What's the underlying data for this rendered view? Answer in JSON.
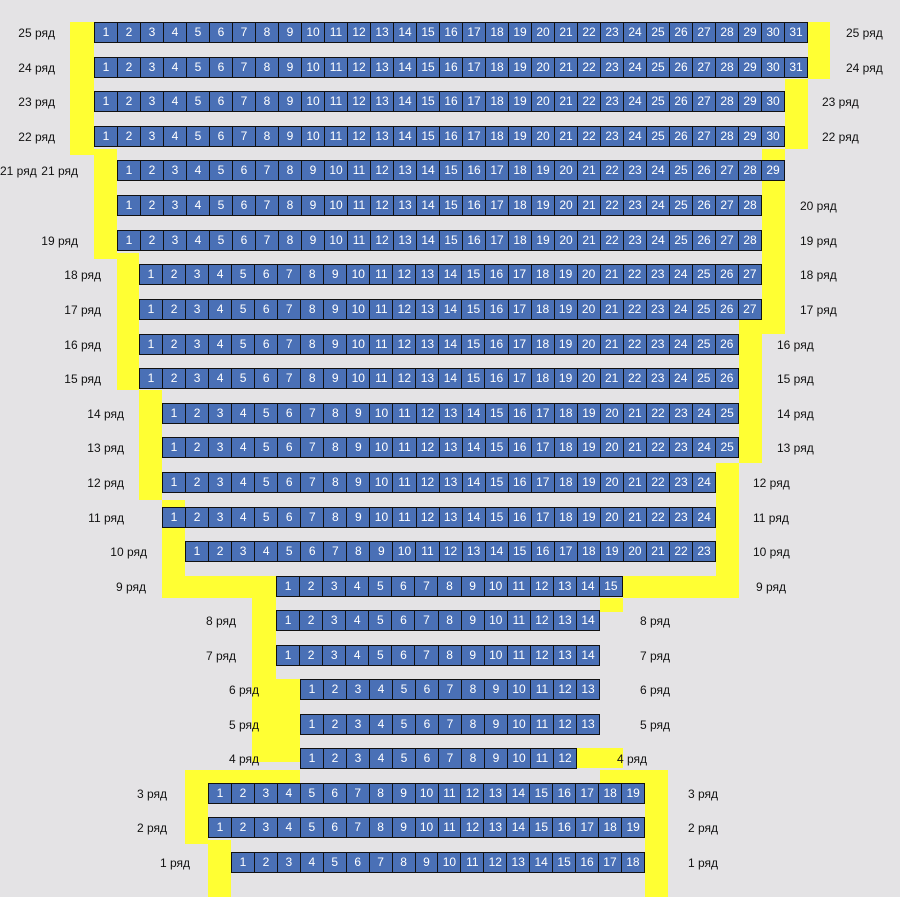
{
  "colors": {
    "seat": "#4a70b6",
    "aisle": "#ffff33",
    "background": "#e4e3e5"
  },
  "rows": [
    {
      "label": "25 ряд",
      "seats": 31
    },
    {
      "label": "24 ряд",
      "seats": 31
    },
    {
      "label": "23 ряд",
      "seats": 30
    },
    {
      "label": "22 ряд",
      "seats": 30
    },
    {
      "label": "21 ряд",
      "seats": 29
    },
    {
      "label": "20 ряд",
      "seats": 28
    },
    {
      "label": "19 ряд",
      "seats": 28
    },
    {
      "label": "18 ряд",
      "seats": 27
    },
    {
      "label": "17 ряд",
      "seats": 27
    },
    {
      "label": "16 ряд",
      "seats": 26
    },
    {
      "label": "15 ряд",
      "seats": 26
    },
    {
      "label": "14 ряд",
      "seats": 25
    },
    {
      "label": "13 ряд",
      "seats": 25
    },
    {
      "label": "12 ряд",
      "seats": 24
    },
    {
      "label": "11 ряд",
      "seats": 24
    },
    {
      "label": "10 ряд",
      "seats": 23
    },
    {
      "label": "9 ряд",
      "seats": 15
    },
    {
      "label": "8 ряд",
      "seats": 14
    },
    {
      "label": "7 ряд",
      "seats": 14
    },
    {
      "label": "6 ряд",
      "seats": 13
    },
    {
      "label": "5 ряд",
      "seats": 13
    },
    {
      "label": "4 ряд",
      "seats": 12
    },
    {
      "label": "3 ряд",
      "seats": 19
    },
    {
      "label": "2 ряд",
      "seats": 19
    },
    {
      "label": "1 ряд",
      "seats": 18
    }
  ]
}
